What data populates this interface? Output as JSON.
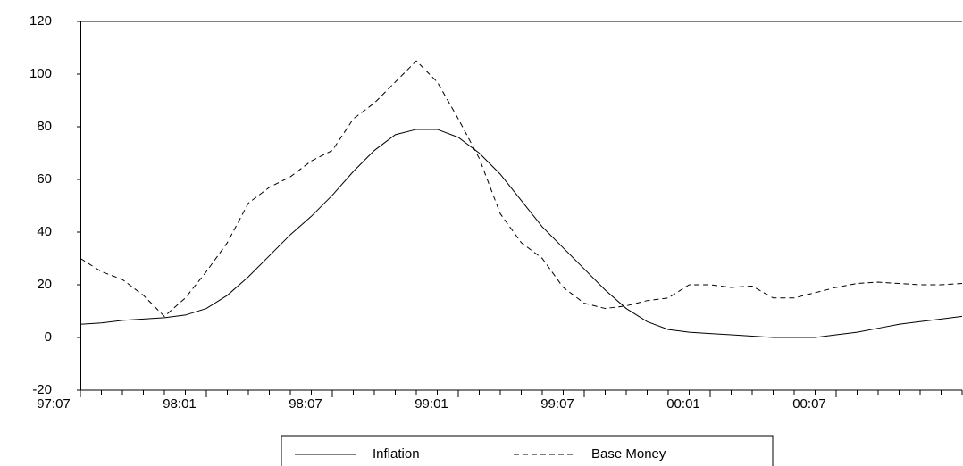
{
  "chart_data": {
    "type": "line",
    "categories": [
      "97:07",
      null,
      null,
      null,
      null,
      null,
      "98:01",
      null,
      null,
      null,
      null,
      null,
      "98:07",
      null,
      null,
      null,
      null,
      null,
      "99:01",
      null,
      null,
      null,
      null,
      null,
      "99:07",
      null,
      null,
      null,
      null,
      null,
      "00:01",
      null,
      null,
      null,
      null,
      null,
      "00:07",
      null,
      null,
      null,
      null,
      null,
      null
    ],
    "series": [
      {
        "name": "Inflation",
        "color": "#000000",
        "line_style": "solid",
        "values": [
          5,
          5.5,
          6.5,
          7,
          7.5,
          8.5,
          11,
          16,
          23,
          31,
          39,
          46,
          54,
          63,
          71,
          77,
          79,
          79,
          76,
          70,
          62,
          52,
          42,
          34,
          26,
          18,
          11,
          6,
          3,
          2,
          1.5,
          1,
          0.5,
          0,
          0,
          0,
          1,
          2,
          3.5,
          5,
          6,
          7,
          8
        ]
      },
      {
        "name": "Base Money",
        "color": "#000000",
        "line_style": "dashed",
        "values": [
          30,
          25,
          22,
          16,
          8,
          15,
          25,
          36,
          51,
          57,
          61,
          67,
          71,
          83,
          89,
          97,
          105,
          97,
          83,
          68,
          47,
          36,
          30,
          19,
          13,
          11,
          12,
          14,
          15,
          20,
          20,
          19,
          19.5,
          15,
          15,
          17,
          19,
          20.5,
          21,
          20.5,
          20,
          20,
          20.5
        ]
      }
    ],
    "ylim": [
      -20,
      120
    ],
    "yticks": [
      -20,
      0,
      20,
      40,
      60,
      80,
      100,
      120
    ],
    "grid": false
  }
}
